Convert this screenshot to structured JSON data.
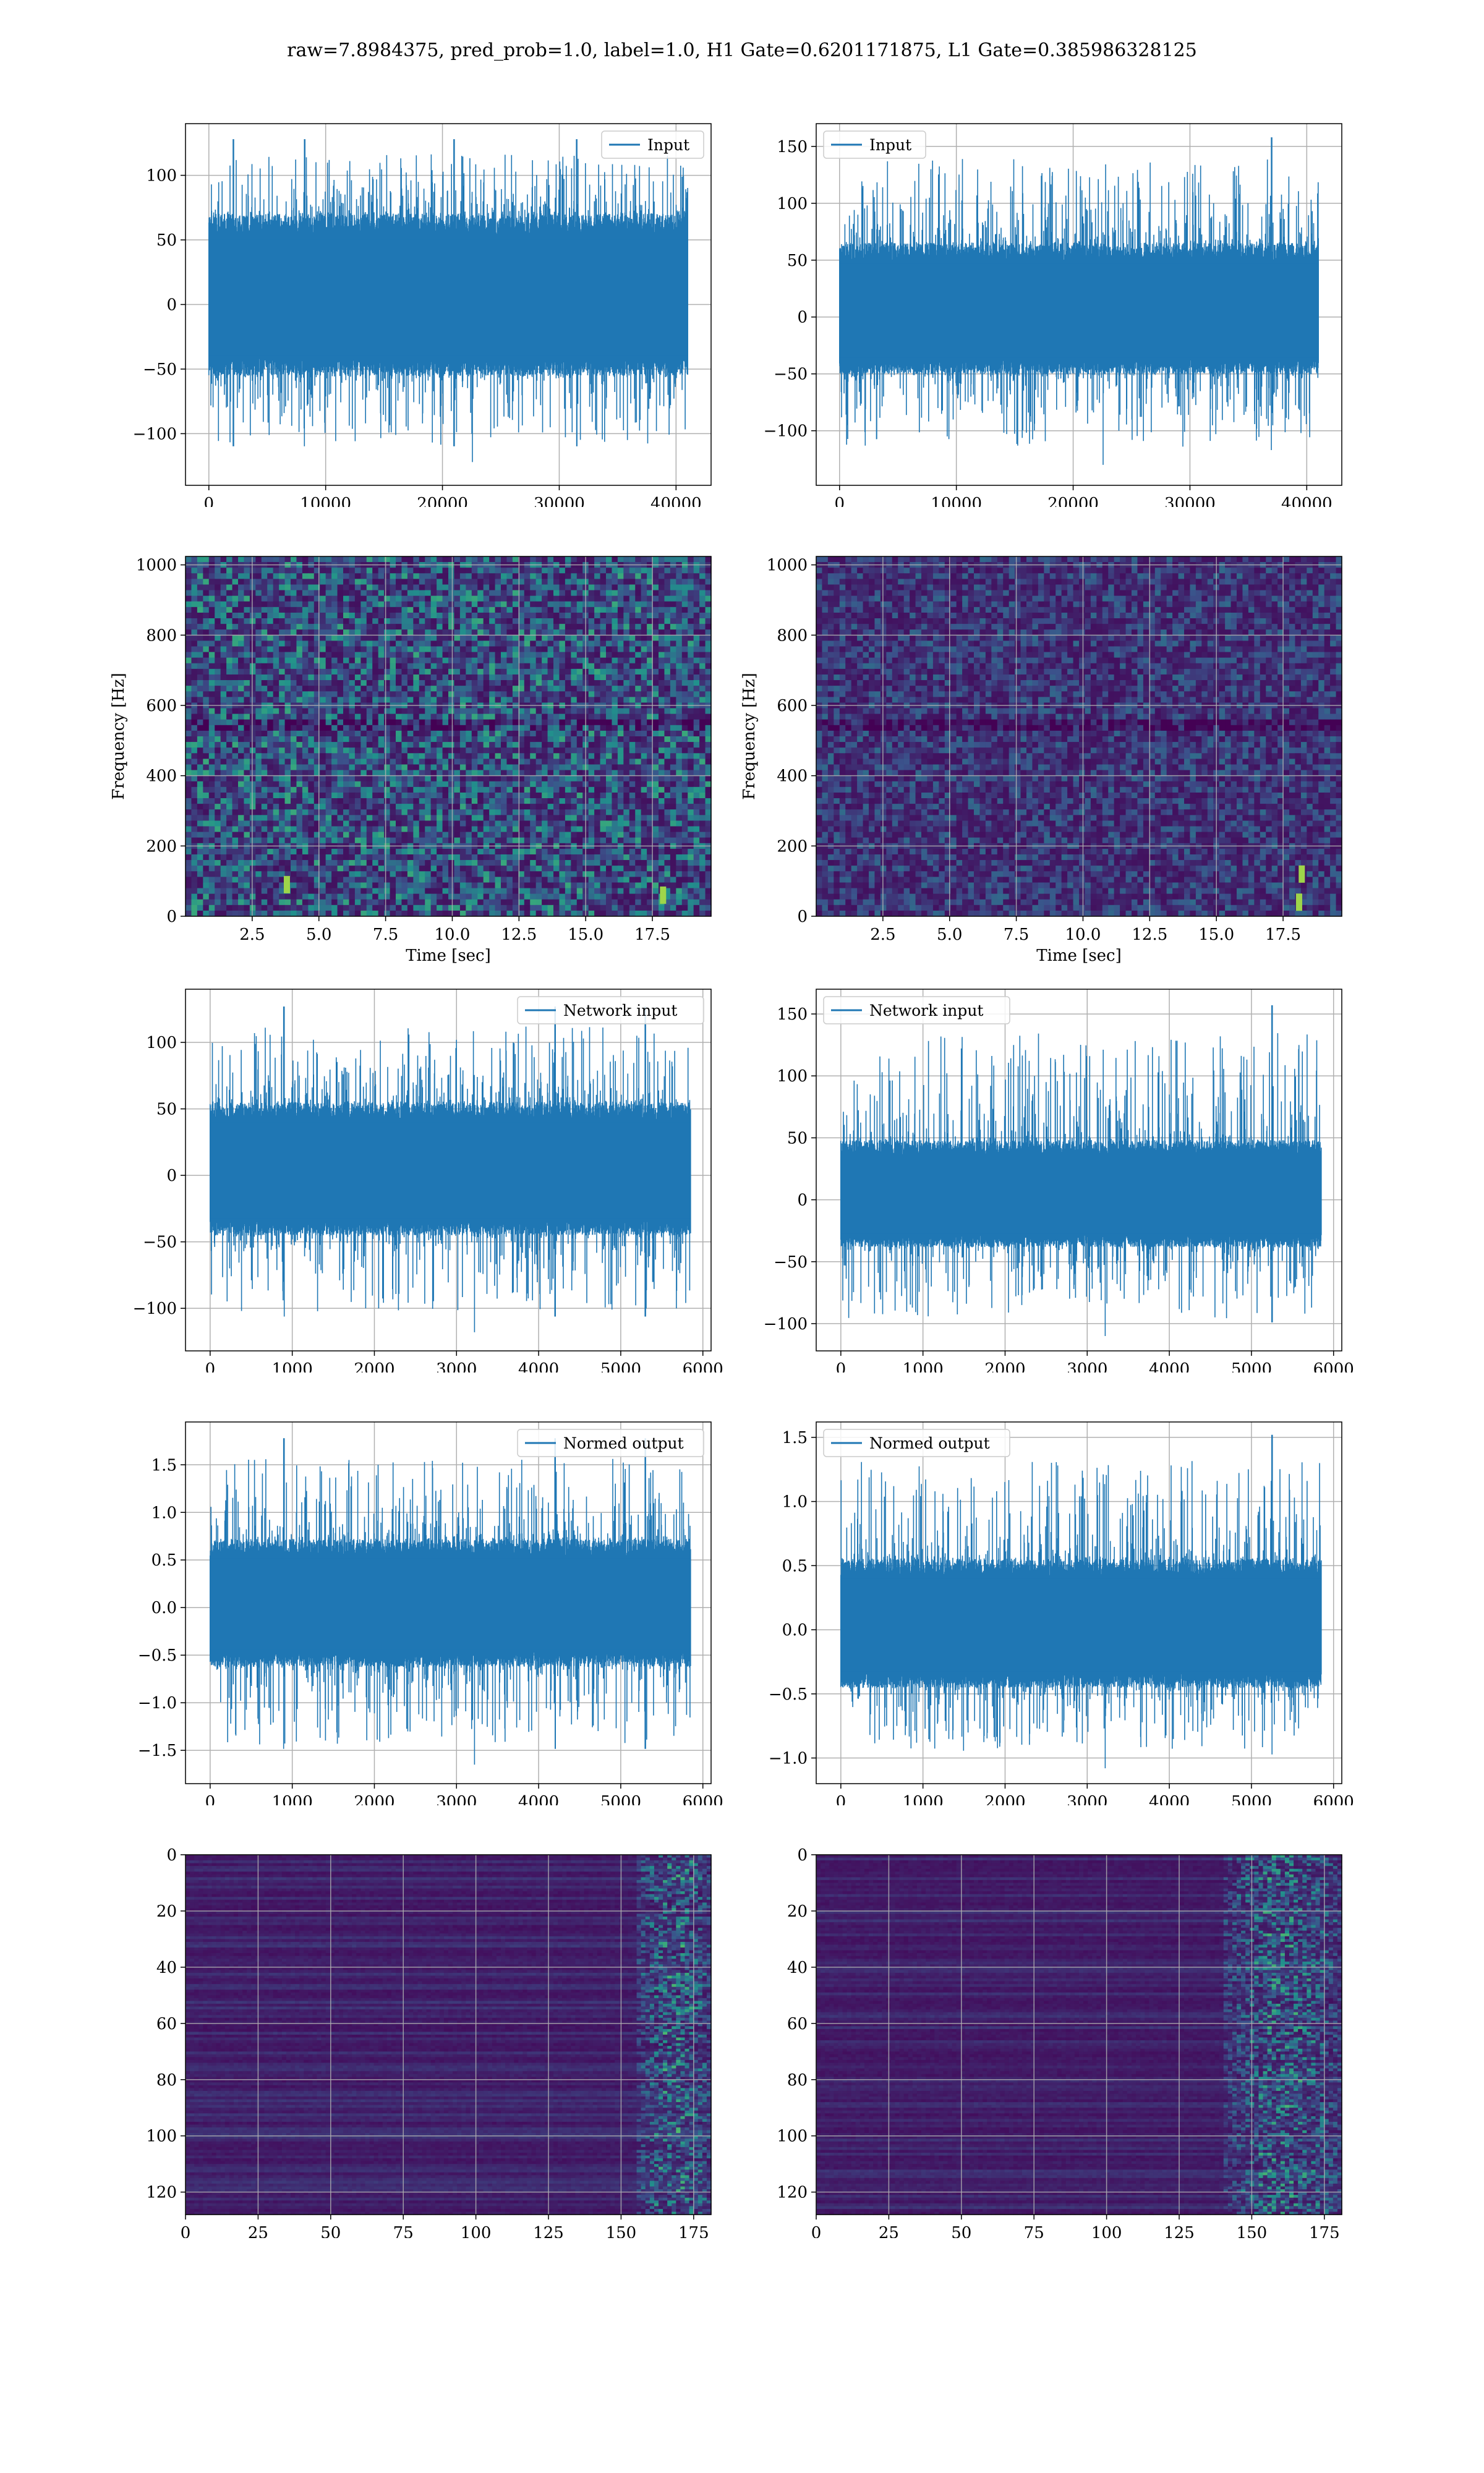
{
  "figure": {
    "suptitle": "raw=7.8984375, pred_prob=1.0, label=1.0, H1 Gate=0.6201171875, L1 Gate=0.385986328125"
  },
  "colors": {
    "line": "#1f77b4",
    "grid": "#b0b0b0",
    "viridis_low": "#440154",
    "viridis_mid": "#21918c",
    "viridis_high": "#fde725"
  },
  "chart_data": [
    {
      "id": "row1-left",
      "type": "line",
      "legend": "Input",
      "legend_loc": "top-right",
      "xlim": [
        -2000,
        43000
      ],
      "ylim": [
        -140,
        140
      ],
      "xticks": [
        0,
        10000,
        20000,
        30000,
        40000
      ],
      "yticks": [
        -100,
        -50,
        0,
        50,
        100
      ],
      "x_range": [
        0,
        41000
      ],
      "envelope": [
        -55,
        70
      ],
      "peak": [
        -122,
        128
      ],
      "spike_positions": [
        2100,
        8200,
        21000,
        31500
      ],
      "grid": true,
      "xlabel": "",
      "ylabel": ""
    },
    {
      "id": "row1-right",
      "type": "line",
      "legend": "Input",
      "legend_loc": "top-left",
      "xlim": [
        -2000,
        43000
      ],
      "ylim": [
        -148,
        170
      ],
      "xticks": [
        0,
        10000,
        20000,
        30000,
        40000
      ],
      "yticks": [
        -100,
        -50,
        0,
        50,
        100,
        150
      ],
      "x_range": [
        0,
        41000
      ],
      "envelope": [
        -50,
        65
      ],
      "peak": [
        -130,
        158
      ],
      "spike_positions": [
        37000
      ],
      "grid": true,
      "xlabel": "",
      "ylabel": ""
    },
    {
      "id": "row2-left",
      "type": "heatmap",
      "kind": "spectrogram",
      "xlim": [
        0,
        19.7
      ],
      "ylim": [
        0,
        1024
      ],
      "xticks": [
        2.5,
        5.0,
        7.5,
        10.0,
        12.5,
        15.0,
        17.5
      ],
      "yticks": [
        0,
        200,
        400,
        600,
        800,
        1000
      ],
      "xlabel": "Time [sec]",
      "ylabel": "Frequency [Hz]",
      "intensity": 0.55,
      "hot_spots": [
        [
          3.8,
          90
        ],
        [
          17.9,
          60
        ]
      ],
      "grid": true
    },
    {
      "id": "row2-right",
      "type": "heatmap",
      "kind": "spectrogram",
      "xlim": [
        0,
        19.7
      ],
      "ylim": [
        0,
        1024
      ],
      "xticks": [
        2.5,
        5.0,
        7.5,
        10.0,
        12.5,
        15.0,
        17.5
      ],
      "yticks": [
        0,
        200,
        400,
        600,
        800,
        1000
      ],
      "xlabel": "Time [sec]",
      "ylabel": "Frequency [Hz]",
      "intensity": 0.3,
      "hot_spots": [
        [
          18.1,
          40
        ],
        [
          18.2,
          120
        ]
      ],
      "grid": true
    },
    {
      "id": "row3-left",
      "type": "line",
      "legend": "Network input",
      "legend_loc": "top-right",
      "xlim": [
        -300,
        6100
      ],
      "ylim": [
        -132,
        140
      ],
      "xticks": [
        0,
        1000,
        2000,
        3000,
        4000,
        5000,
        6000
      ],
      "yticks": [
        -100,
        -50,
        0,
        50,
        100
      ],
      "x_range": [
        0,
        5850
      ],
      "envelope": [
        -45,
        55
      ],
      "peak": [
        -118,
        127
      ],
      "spike_positions": [
        900,
        4200,
        5300
      ],
      "grid": true,
      "xlabel": "",
      "ylabel": ""
    },
    {
      "id": "row3-right",
      "type": "line",
      "legend": "Network input",
      "legend_loc": "top-left",
      "xlim": [
        -300,
        6100
      ],
      "ylim": [
        -122,
        170
      ],
      "xticks": [
        0,
        1000,
        2000,
        3000,
        4000,
        5000,
        6000
      ],
      "yticks": [
        -100,
        -50,
        0,
        50,
        100,
        150
      ],
      "x_range": [
        0,
        5850
      ],
      "envelope": [
        -38,
        48
      ],
      "peak": [
        -110,
        157
      ],
      "spike_positions": [
        5250
      ],
      "grid": true,
      "xlabel": "",
      "ylabel": ""
    },
    {
      "id": "row4-left",
      "type": "line",
      "legend": "Normed output",
      "legend_loc": "top-right",
      "xlim": [
        -300,
        6100
      ],
      "ylim": [
        -1.85,
        1.95
      ],
      "xticks": [
        0,
        1000,
        2000,
        3000,
        4000,
        5000,
        6000
      ],
      "yticks": [
        -1.5,
        -1.0,
        -0.5,
        0.0,
        0.5,
        1.0,
        1.5
      ],
      "ytick_labels": [
        "−1.5",
        "−1.0",
        "−0.5",
        "0.0",
        "0.5",
        "1.0",
        "1.5"
      ],
      "x_range": [
        0,
        5850
      ],
      "envelope": [
        -0.62,
        0.72
      ],
      "peak": [
        -1.65,
        1.78
      ],
      "spike_positions": [
        900,
        4200,
        5300
      ],
      "grid": true,
      "xlabel": "",
      "ylabel": ""
    },
    {
      "id": "row4-right",
      "type": "line",
      "legend": "Normed output",
      "legend_loc": "top-left",
      "xlim": [
        -300,
        6100
      ],
      "ylim": [
        -1.2,
        1.62
      ],
      "xticks": [
        0,
        1000,
        2000,
        3000,
        4000,
        5000,
        6000
      ],
      "yticks": [
        -1.0,
        -0.5,
        0.0,
        0.5,
        1.0,
        1.5
      ],
      "ytick_labels": [
        "−1.0",
        "−0.5",
        "0.0",
        "0.5",
        "1.0",
        "1.5"
      ],
      "x_range": [
        0,
        5850
      ],
      "envelope": [
        -0.45,
        0.55
      ],
      "peak": [
        -1.08,
        1.52
      ],
      "spike_positions": [
        5250
      ],
      "grid": true,
      "xlabel": "",
      "ylabel": ""
    },
    {
      "id": "row5-left",
      "type": "heatmap",
      "kind": "feature-map",
      "xlim": [
        0,
        181
      ],
      "ylim": [
        128,
        0
      ],
      "xticks": [
        0,
        25,
        50,
        75,
        100,
        125,
        150,
        175
      ],
      "yticks": [
        0,
        20,
        40,
        60,
        80,
        100,
        120
      ],
      "active_columns": [
        155,
        181
      ],
      "grid": true,
      "xlabel": "",
      "ylabel": ""
    },
    {
      "id": "row5-right",
      "type": "heatmap",
      "kind": "feature-map",
      "xlim": [
        0,
        181
      ],
      "ylim": [
        128,
        0
      ],
      "xticks": [
        0,
        25,
        50,
        75,
        100,
        125,
        150,
        175
      ],
      "yticks": [
        0,
        20,
        40,
        60,
        80,
        100,
        120
      ],
      "active_columns": [
        140,
        181
      ],
      "grid": true,
      "xlabel": "",
      "ylabel": ""
    }
  ]
}
